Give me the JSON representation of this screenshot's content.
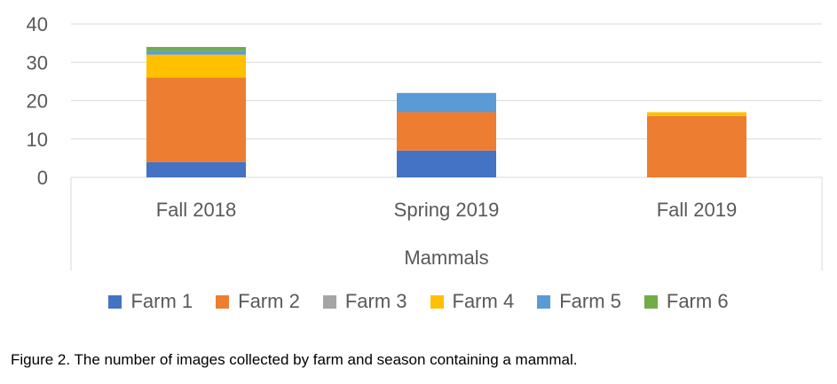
{
  "chart_data": {
    "type": "bar",
    "stacked": true,
    "categories": [
      "Fall 2018",
      "Spring 2019",
      "Fall 2019"
    ],
    "series": [
      {
        "name": "Farm 1",
        "color": "#4472C4",
        "values": [
          4,
          7,
          0
        ]
      },
      {
        "name": "Farm 2",
        "color": "#ED7D31",
        "values": [
          22,
          10,
          16
        ]
      },
      {
        "name": "Farm 3",
        "color": "#A5A5A5",
        "values": [
          0,
          0,
          0
        ]
      },
      {
        "name": "Farm 4",
        "color": "#FFC000",
        "values": [
          6,
          0,
          1
        ]
      },
      {
        "name": "Farm 5",
        "color": "#5B9BD5",
        "values": [
          1,
          5,
          0
        ]
      },
      {
        "name": "Farm 6",
        "color": "#70AD47",
        "values": [
          1,
          0,
          0
        ]
      }
    ],
    "yticks": [
      0,
      10,
      20,
      30,
      40
    ],
    "ylim": [
      0,
      40
    ],
    "xlabel": "Mammals",
    "ylabel": "",
    "grid": true,
    "legend_position": "bottom"
  },
  "caption": "Figure 2. The number of images collected by farm and season containing a mammal."
}
